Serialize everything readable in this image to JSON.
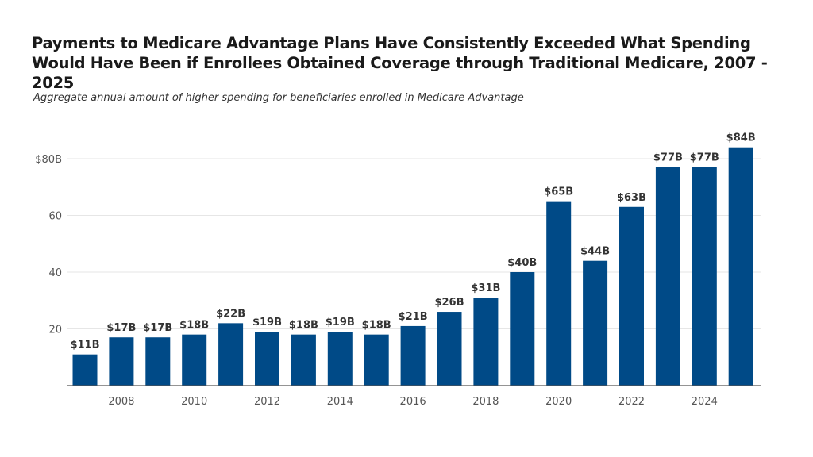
{
  "title": "Payments to Medicare Advantage Plans Have Consistently Exceeded What Spending Would Have Been if Enrollees Obtained Coverage through Traditional Medicare, 2007 - 2025",
  "subtitle": "Aggregate annual amount of higher spending for beneficiaries enrolled in Medicare Advantage",
  "chart_data": {
    "type": "bar",
    "title": "Payments to Medicare Advantage Plans Have Consistently Exceeded What Spending Would Have Been if Enrollees Obtained Coverage through Traditional Medicare, 2007 - 2025",
    "subtitle": "Aggregate annual amount of higher spending for beneficiaries enrolled in Medicare Advantage",
    "categories": [
      2007,
      2008,
      2009,
      2010,
      2011,
      2012,
      2013,
      2014,
      2015,
      2016,
      2017,
      2018,
      2019,
      2020,
      2021,
      2022,
      2023,
      2024,
      2025
    ],
    "values": [
      11,
      17,
      17,
      18,
      22,
      19,
      18,
      19,
      18,
      21,
      26,
      31,
      40,
      65,
      44,
      63,
      77,
      77,
      84
    ],
    "data_labels": [
      "$11B",
      "$17B",
      "$17B",
      "$18B",
      "$22B",
      "$19B",
      "$18B",
      "$19B",
      "$18B",
      "$21B",
      "$26B",
      "$31B",
      "$40B",
      "$65B",
      "$44B",
      "$63B",
      "$77B",
      "$77B",
      "$84B"
    ],
    "x_tick_labels": [
      "2008",
      "2010",
      "2012",
      "2014",
      "2016",
      "2018",
      "2020",
      "2022",
      "2024"
    ],
    "y_ticks": [
      20,
      40,
      60,
      80
    ],
    "y_tick_labels": [
      "20",
      "40",
      "60",
      "$80B"
    ],
    "ylim": [
      0,
      80
    ],
    "xlabel": "",
    "ylabel": "",
    "grid": true,
    "bar_color": "#004A87"
  }
}
